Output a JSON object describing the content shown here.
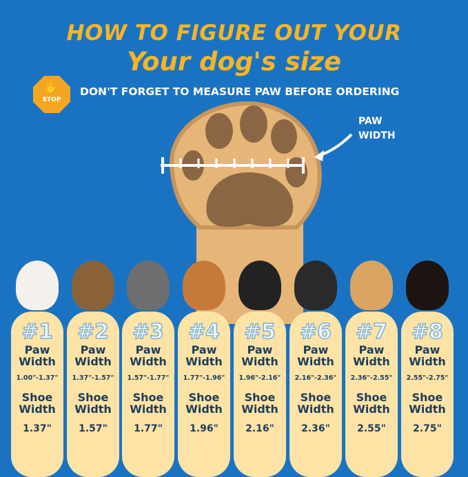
{
  "title_line1": "HOW TO FIGURE OUT YOUR",
  "title_line2": "Your dog's size",
  "stop_sign": {
    "label": "STOP",
    "icon": "hand-icon"
  },
  "subtitle": "DON'T FORGET TO MEASURE PAW BEFORE ORDERING",
  "paw_width_label": [
    "PAW",
    "WIDTH"
  ],
  "colors": {
    "background": "#1a73c2",
    "title": "#f6b526",
    "card": "#fde3a6",
    "text": "#1d3c5b"
  },
  "sizes": [
    {
      "number": "#1",
      "paw_label": [
        "Paw",
        "Width"
      ],
      "paw_range": "1.00\"-1.37\"",
      "shoe_label": [
        "Shoe",
        "Width"
      ],
      "shoe_width": "1.37\""
    },
    {
      "number": "#2",
      "paw_label": [
        "Paw",
        "Width"
      ],
      "paw_range": "1.37\"-1.57\"",
      "shoe_label": [
        "Shoe",
        "Width"
      ],
      "shoe_width": "1.57\""
    },
    {
      "number": "#3",
      "paw_label": [
        "Paw",
        "Width"
      ],
      "paw_range": "1.57\"-1.77\"",
      "shoe_label": [
        "Shoe",
        "Width"
      ],
      "shoe_width": "1.77\""
    },
    {
      "number": "#4",
      "paw_label": [
        "Paw",
        "Width"
      ],
      "paw_range": "1.77\"-1.96\"",
      "shoe_label": [
        "Shoe",
        "Width"
      ],
      "shoe_width": "1.96\""
    },
    {
      "number": "#5",
      "paw_label": [
        "Paw",
        "Width"
      ],
      "paw_range": "1.96\"-2.16\"",
      "shoe_label": [
        "Shoe",
        "Width"
      ],
      "shoe_width": "2.16\""
    },
    {
      "number": "#6",
      "paw_label": [
        "Paw",
        "Width"
      ],
      "paw_range": "2.16\"-2.36\"",
      "shoe_label": [
        "Shoe",
        "Width"
      ],
      "shoe_width": "2.36\""
    },
    {
      "number": "#7",
      "paw_label": [
        "Paw",
        "Width"
      ],
      "paw_range": "2.36\"-2.55\"",
      "shoe_label": [
        "Shoe",
        "Width"
      ],
      "shoe_width": "2.55\""
    },
    {
      "number": "#8",
      "paw_label": [
        "Paw",
        "Width"
      ],
      "paw_range": "2.55\"-2.75\"",
      "shoe_label": [
        "Shoe",
        "Width"
      ],
      "shoe_width": "2.75\""
    }
  ]
}
